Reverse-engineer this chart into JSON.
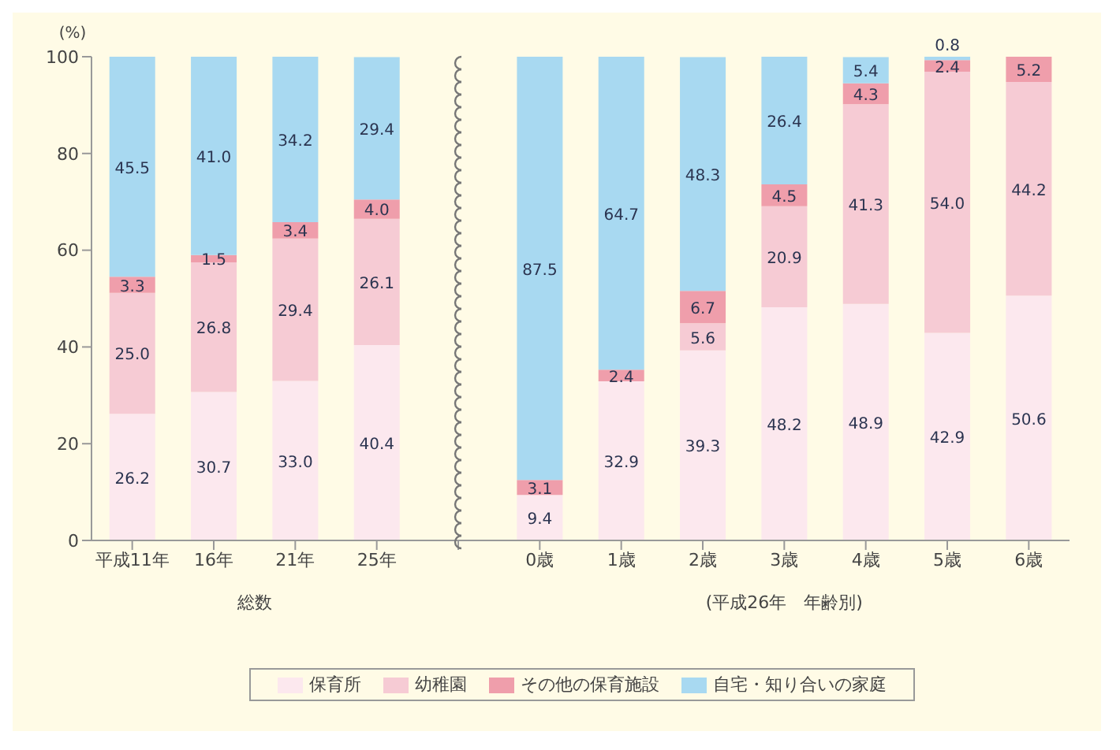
{
  "chart_data": {
    "type": "bar",
    "stacked": true,
    "ylabel": "(%)",
    "categories": [
      "平成11年",
      "16年",
      "21年",
      "25年",
      null,
      "0歳",
      "1歳",
      "2歳",
      "3歳",
      "4歳",
      "5歳",
      "6歳"
    ],
    "series": [
      {
        "name": "保育所",
        "color": "#fce8ee",
        "values": [
          26.2,
          30.7,
          33.0,
          40.4,
          null,
          9.4,
          32.9,
          39.3,
          48.2,
          48.9,
          42.9,
          50.6
        ],
        "value_labels": [
          "26.2",
          "30.7",
          "33.0",
          "40.4",
          null,
          "9.4",
          "32.9",
          "39.3",
          "48.2",
          "48.9",
          "42.9",
          "50.6"
        ]
      },
      {
        "name": "幼稚園",
        "color": "#f6cbd4",
        "values": [
          25.0,
          26.8,
          29.4,
          26.1,
          null,
          null,
          null,
          5.6,
          20.9,
          41.3,
          54.0,
          44.2
        ],
        "value_labels": [
          "25.0",
          "26.8",
          "29.4",
          "26.1",
          null,
          null,
          null,
          "5.6",
          "20.9",
          "41.3",
          "54.0",
          "44.2"
        ]
      },
      {
        "name": "その他の保育施設",
        "color": "#ef9eab",
        "values": [
          3.3,
          1.5,
          3.4,
          4.0,
          null,
          3.1,
          2.4,
          6.7,
          4.5,
          4.3,
          2.4,
          5.2
        ],
        "value_labels": [
          "3.3",
          "1.5",
          "3.4",
          "4.0",
          null,
          "3.1",
          "2.4",
          "6.7",
          "4.5",
          "4.3",
          "2.4",
          "5.2"
        ]
      },
      {
        "name": "自宅・知り合いの家庭",
        "color": "#a8d9f1",
        "values": [
          45.5,
          41.0,
          34.2,
          29.4,
          null,
          87.5,
          64.7,
          48.3,
          26.4,
          5.4,
          0.8,
          null
        ],
        "value_labels": [
          "45.5",
          "41.0",
          "34.2",
          "29.4",
          null,
          "87.5",
          "64.7",
          "48.3",
          "26.4",
          "5.4",
          "0.8",
          null
        ]
      }
    ],
    "ylim": [
      0,
      100
    ],
    "yticks": [
      0,
      20,
      40,
      60,
      80,
      100
    ],
    "legend": "bottom",
    "annotations": [
      "総数",
      "(平成26年　年齢別)"
    ]
  }
}
